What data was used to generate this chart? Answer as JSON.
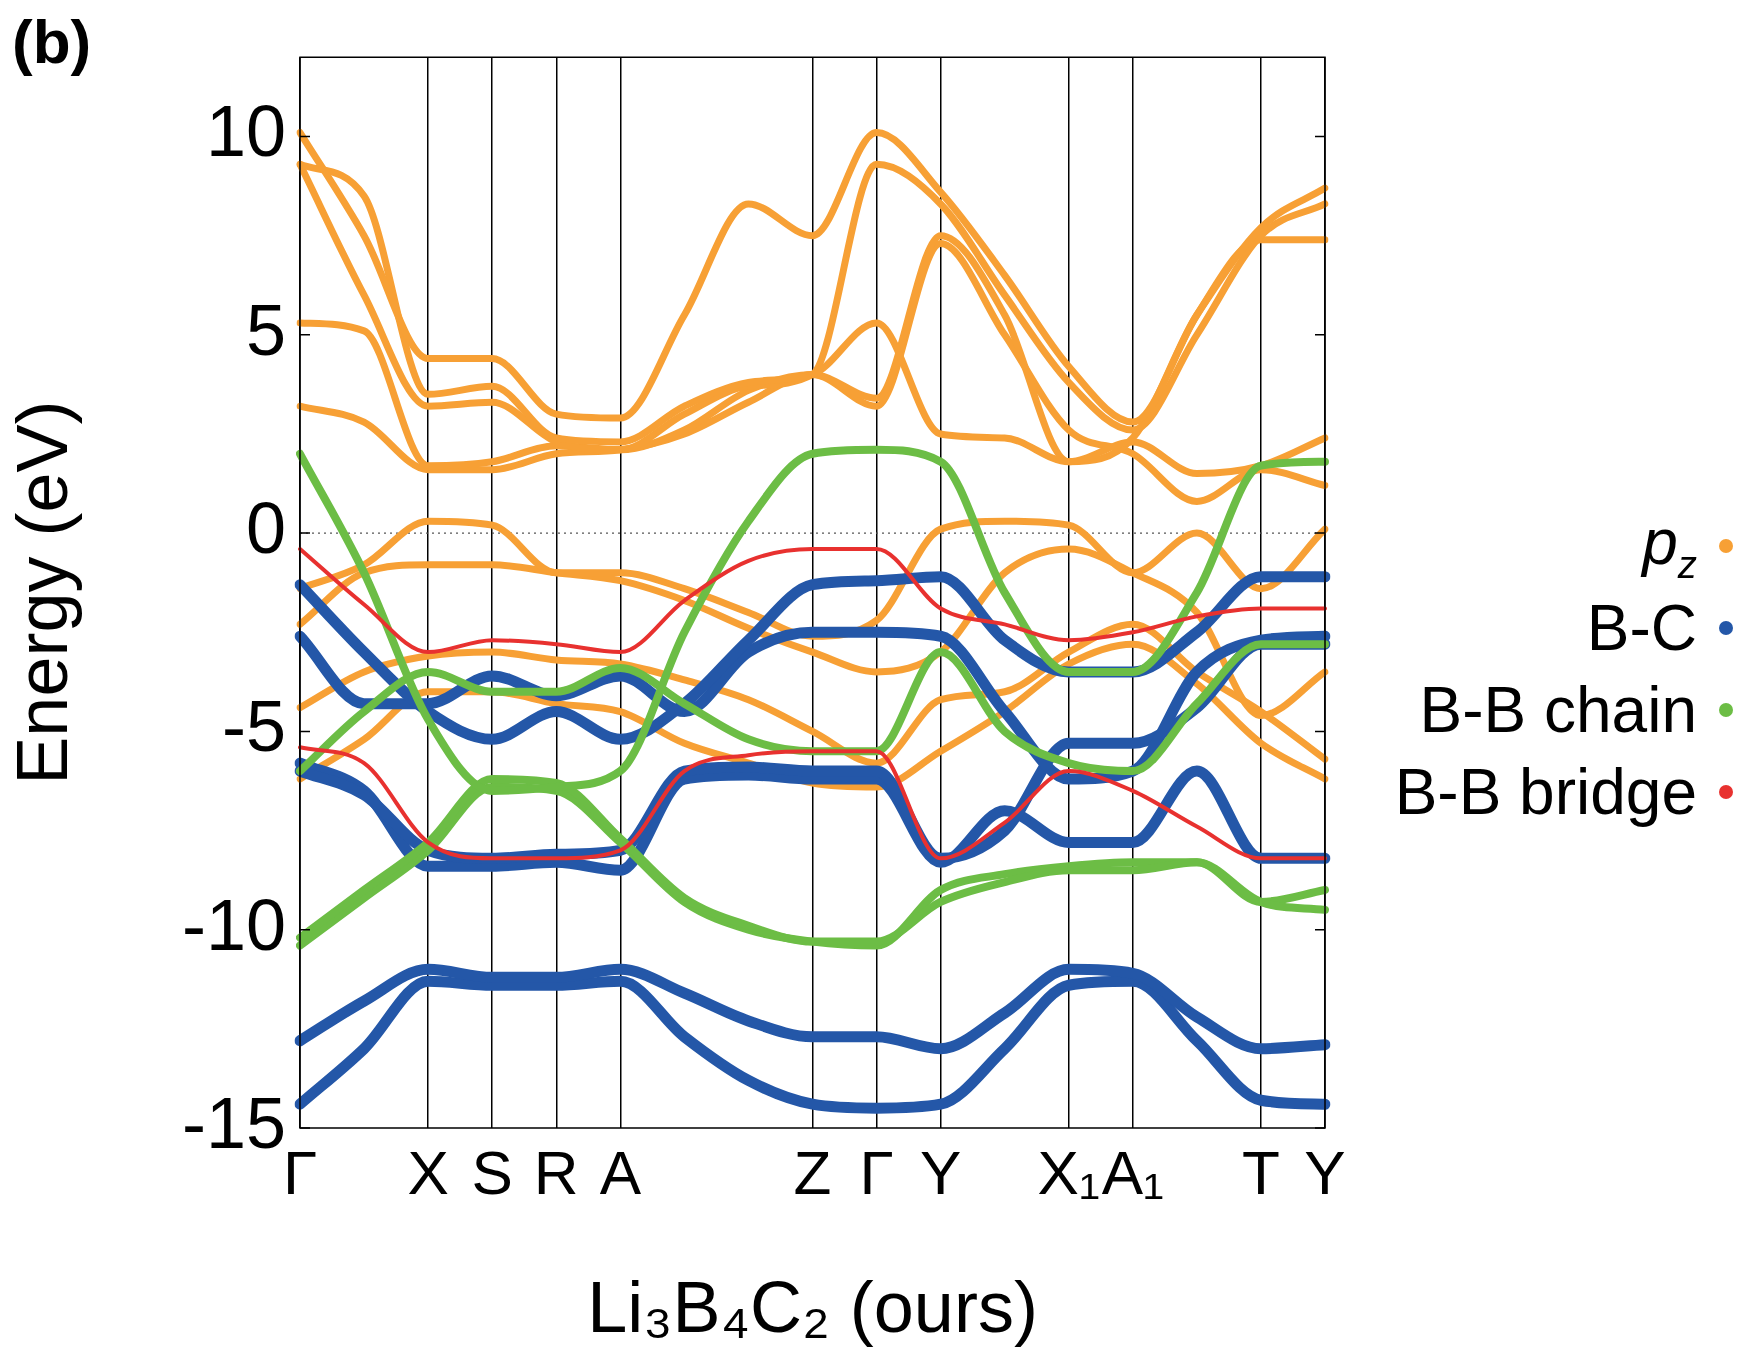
{
  "chart_data": {
    "type": "line",
    "xlabel": "Li₃B₄C₂ (ours)",
    "ylabel": "Energy (eV)",
    "annotations": [
      "(b)"
    ],
    "categories": [
      "Γ",
      null,
      "X",
      "S",
      "R",
      "A",
      null,
      null,
      "Z",
      "Γ",
      "Y",
      null,
      "X₁",
      "A₁",
      null,
      "T",
      "Y"
    ],
    "ylim": [
      -15,
      12
    ],
    "yticks": [
      -15,
      -10,
      -5,
      0,
      5,
      10
    ],
    "grid": "x",
    "legend": "right",
    "marker": "none",
    "line_style": "solid",
    "ref_lines": [
      {
        "axis": "y",
        "value": 0,
        "color": "#555555",
        "line_style": "dotted"
      }
    ],
    "series": [
      {
        "name": "p$_{z}$",
        "color": "#f7a035",
        "values": [
          10.1,
          7.5,
          4.4,
          4.4,
          3.0,
          2.9,
          5.5,
          8.3,
          7.5,
          10.1,
          8.6,
          6.5,
          4.2,
          2.8,
          5.5,
          7.7,
          8.7
        ]
      },
      {
        "color": "#f7a035",
        "values": [
          9.3,
          8.5,
          3.5,
          3.7,
          2.4,
          2.3,
          3.2,
          3.8,
          4.0,
          5.3,
          2.5,
          2.4,
          1.8,
          2.3,
          1.5,
          1.7,
          2.4
        ]
      },
      {
        "color": "#f7a035",
        "values": [
          9.3,
          6.0,
          3.2,
          3.3,
          2.3,
          2.1,
          3.0,
          3.7,
          4.0,
          9.3,
          8.3,
          6.0,
          3.8,
          2.6,
          5.0,
          7.5,
          8.3
        ]
      },
      {
        "color": "#f7a035",
        "values": [
          5.3,
          5.1,
          1.7,
          1.8,
          2.2,
          2.1,
          2.6,
          3.6,
          4.0,
          3.4,
          7.5,
          5.5,
          1.8,
          2.4,
          5.5,
          7.4,
          7.4
        ]
      },
      {
        "color": "#f7a035",
        "values": [
          3.2,
          2.8,
          1.6,
          1.6,
          2.0,
          2.1,
          2.5,
          3.3,
          4.0,
          3.2,
          7.3,
          5.0,
          2.6,
          2.0,
          0.8,
          1.6,
          1.2
        ]
      },
      {
        "color": "#f7a035",
        "values": [
          -1.4,
          -0.8,
          0.3,
          0.2,
          -1.0,
          -1.0,
          -1.4,
          -2.0,
          -2.6,
          -2.2,
          0.1,
          0.3,
          0.2,
          -1.0,
          0.0,
          -1.4,
          0.1
        ]
      },
      {
        "color": "#f7a035",
        "values": [
          -2.3,
          -1.0,
          -0.8,
          -0.8,
          -1.0,
          -1.2,
          -1.7,
          -2.4,
          -3.0,
          -3.5,
          -3.0,
          -1.0,
          -0.4,
          -1.0,
          -2.0,
          -4.6,
          -3.5
        ]
      },
      {
        "color": "#f7a035",
        "values": [
          -4.4,
          -3.5,
          -3.1,
          -3.0,
          -3.2,
          -3.3,
          -3.7,
          -4.2,
          -5.0,
          -5.8,
          -4.2,
          -4.0,
          -3.0,
          -2.3,
          -3.5,
          -4.5,
          -5.7
        ]
      },
      {
        "color": "#f7a035",
        "values": [
          -6.2,
          -5.2,
          -4.0,
          -4.0,
          -4.3,
          -4.5,
          -5.3,
          -5.8,
          -6.3,
          -6.4,
          -5.5,
          -4.5,
          -3.3,
          -2.8,
          -3.8,
          -5.3,
          -6.2
        ]
      },
      {
        "name": "B-C",
        "color": "#2457a8",
        "values": [
          -1.3,
          -3.0,
          -4.5,
          -5.2,
          -4.5,
          -5.2,
          -4.3,
          -2.7,
          -1.3,
          -1.2,
          -1.1,
          -2.7,
          -3.5,
          -3.5,
          -2.5,
          -1.1,
          -1.1
        ]
      },
      {
        "color": "#2457a8",
        "values": [
          -2.6,
          -4.3,
          -4.3,
          -3.6,
          -4.1,
          -3.6,
          -4.5,
          -3.0,
          -2.5,
          -2.5,
          -2.6,
          -4.5,
          -6.2,
          -6.0,
          -3.5,
          -2.7,
          -2.6
        ]
      },
      {
        "color": "#2457a8",
        "values": [
          -6.0,
          -6.6,
          -8.0,
          -8.2,
          -8.1,
          -8.0,
          -6.0,
          -5.9,
          -6.0,
          -6.0,
          -8.2,
          -7.5,
          -5.3,
          -5.3,
          -4.4,
          -2.8,
          -2.8
        ]
      },
      {
        "color": "#2457a8",
        "values": [
          -5.8,
          -6.5,
          -8.4,
          -8.4,
          -8.3,
          -8.5,
          -6.2,
          -6.1,
          -6.2,
          -6.2,
          -8.3,
          -7.0,
          -7.8,
          -7.8,
          -6.0,
          -8.2,
          -8.2
        ]
      },
      {
        "color": "#2457a8",
        "values": [
          -12.8,
          -11.8,
          -11.0,
          -11.2,
          -11.2,
          -11.0,
          -11.6,
          -12.3,
          -12.7,
          -12.7,
          -13.0,
          -12.1,
          -11.0,
          -11.1,
          -12.2,
          -13.0,
          -12.9
        ]
      },
      {
        "color": "#2457a8",
        "values": [
          -14.4,
          -13.0,
          -11.3,
          -11.4,
          -11.4,
          -11.3,
          -12.7,
          -13.8,
          -14.4,
          -14.5,
          -14.4,
          -13.0,
          -11.4,
          -11.3,
          -12.8,
          -14.3,
          -14.4
        ]
      },
      {
        "name": "B-B chain",
        "color": "#6cbd45",
        "values": [
          2.0,
          -1.0,
          -4.7,
          -6.5,
          -6.4,
          -6.0,
          -2.5,
          0.3,
          2.0,
          2.1,
          1.8,
          -1.5,
          -3.5,
          -3.5,
          -1.5,
          1.7,
          1.8
        ]
      },
      {
        "color": "#6cbd45",
        "values": [
          -10.2,
          -9.0,
          -7.8,
          -6.2,
          -6.3,
          -7.7,
          -9.2,
          -9.9,
          -10.3,
          -10.3,
          -9.3,
          -8.8,
          -8.5,
          -8.5,
          -8.3,
          -9.3,
          -9.5
        ]
      },
      {
        "color": "#6cbd45",
        "values": [
          -10.4,
          -9.2,
          -8.0,
          -6.4,
          -6.5,
          -7.8,
          -9.3,
          -10.0,
          -10.3,
          -10.4,
          -9.0,
          -8.6,
          -8.4,
          -8.3,
          -8.3,
          -9.3,
          -9.0
        ]
      },
      {
        "color": "#6cbd45",
        "values": [
          -6.0,
          -4.5,
          -3.5,
          -4.0,
          -4.0,
          -3.4,
          -4.3,
          -5.2,
          -5.5,
          -5.5,
          -3.0,
          -5.0,
          -5.8,
          -6.0,
          -4.3,
          -2.8,
          -2.8
        ]
      },
      {
        "name": "B-B bridge",
        "color": "#e8312f",
        "values": [
          -0.4,
          -1.8,
          -3.0,
          -2.7,
          -2.8,
          -3.0,
          -1.7,
          -0.7,
          -0.4,
          -0.4,
          -1.9,
          -2.3,
          -2.7,
          -2.5,
          -2.1,
          -1.9,
          -1.9
        ]
      },
      {
        "color": "#e8312f",
        "values": [
          -5.4,
          -5.8,
          -7.8,
          -8.2,
          -8.2,
          -8.0,
          -6.0,
          -5.6,
          -5.5,
          -5.5,
          -8.2,
          -7.3,
          -6.0,
          -6.5,
          -7.4,
          -8.2,
          -8.2
        ]
      }
    ]
  }
}
